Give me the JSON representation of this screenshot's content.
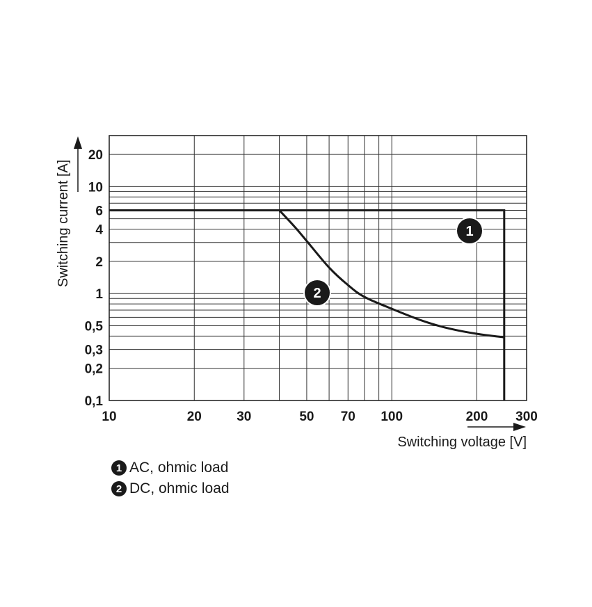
{
  "chart_data": {
    "type": "line",
    "xlabel": "Switching voltage [V]",
    "ylabel": "Switching current [A]",
    "x_scale": "log",
    "y_scale": "log",
    "xlim": [
      10,
      300
    ],
    "ylim": [
      0.1,
      30
    ],
    "x_ticks": [
      10,
      20,
      30,
      50,
      70,
      100,
      200,
      300
    ],
    "x_tick_labels": [
      "10",
      "20",
      "30",
      "50",
      "70",
      "100",
      "200",
      "300"
    ],
    "y_ticks": [
      0.1,
      0.2,
      0.3,
      0.5,
      1,
      2,
      4,
      6,
      10,
      20
    ],
    "y_tick_labels": [
      "0,1",
      "0,2",
      "0,3",
      "0,5",
      "1",
      "2",
      "4",
      "6",
      "10",
      "20"
    ],
    "grid": true,
    "series": [
      {
        "marker": "1",
        "points": [
          [
            10,
            6
          ],
          [
            250,
            6
          ],
          [
            250,
            0.1
          ]
        ]
      },
      {
        "marker": "2",
        "points": [
          [
            40,
            6
          ],
          [
            45,
            4.3
          ],
          [
            50,
            3.1
          ],
          [
            60,
            1.75
          ],
          [
            70,
            1.2
          ],
          [
            80,
            0.93
          ],
          [
            100,
            0.72
          ],
          [
            130,
            0.55
          ],
          [
            160,
            0.47
          ],
          [
            200,
            0.42
          ],
          [
            250,
            0.39
          ]
        ]
      }
    ],
    "legend": [
      {
        "marker": "1",
        "text": "AC, ohmic load"
      },
      {
        "marker": "2",
        "text": "DC, ohmic load"
      }
    ]
  }
}
